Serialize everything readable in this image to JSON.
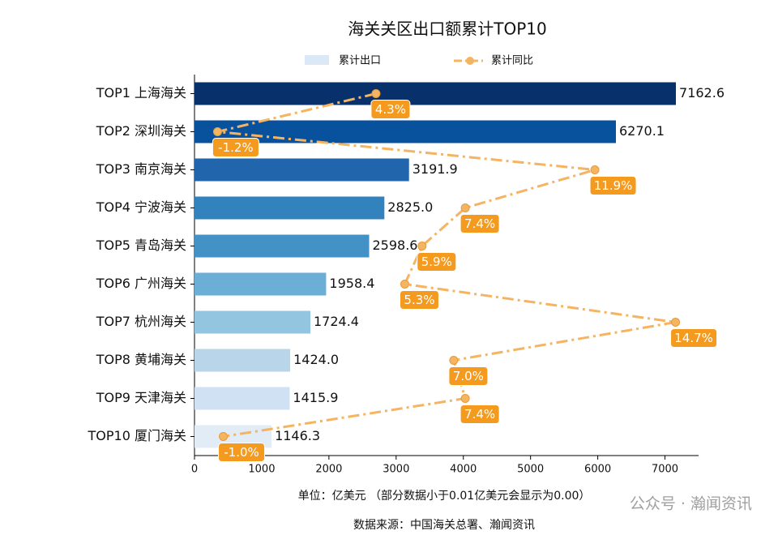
{
  "chart_data": {
    "type": "bar_line",
    "title": "海关关区出口额累计TOP10",
    "categories": [
      "TOP1 上海海关",
      "TOP2 深圳海关",
      "TOP3 南京海关",
      "TOP4 宁波海关",
      "TOP5 青岛海关",
      "TOP6 广州海关",
      "TOP7 杭州海关",
      "TOP8 黄埔海关",
      "TOP9 天津海关",
      "TOP10 厦门海关"
    ],
    "series": [
      {
        "name": "累计出口",
        "type": "bar",
        "values": [
          7162.6,
          6270.1,
          3191.9,
          2825.0,
          2598.6,
          1958.4,
          1724.4,
          1424.0,
          1415.9,
          1146.3
        ],
        "value_labels": [
          "7162.6",
          "6270.1",
          "3191.9",
          "2825.0",
          "2598.6",
          "1958.4",
          "1724.4",
          "1424.0",
          "1415.9",
          "1146.3"
        ],
        "colors": [
          "#08306b",
          "#08519c",
          "#2166ac",
          "#3182bd",
          "#4292c6",
          "#6baed6",
          "#93c4e0",
          "#b8d5ea",
          "#cfe1f2",
          "#e1ecf7"
        ],
        "legend_color": "#dbe9f6"
      },
      {
        "name": "累计同比",
        "type": "line",
        "axis": "x2",
        "values": [
          4.3,
          -1.2,
          11.9,
          7.4,
          5.9,
          5.3,
          14.7,
          7.0,
          7.4,
          -1.0
        ],
        "value_labels": [
          "4.3%",
          "-1.2%",
          "11.9%",
          "7.4%",
          "5.9%",
          "5.3%",
          "14.7%",
          "7.0%",
          "7.4%",
          "-1.0%"
        ],
        "color": "#f5b461",
        "label_color": "#f39a1f"
      }
    ],
    "xlim": [
      0,
      7500
    ],
    "xticks": [
      0,
      1000,
      2000,
      3000,
      4000,
      5000,
      6000,
      7000
    ],
    "x2lim": [
      -2,
      15.5
    ],
    "xlabel": "单位：亿美元  （部分数据小于0.01亿美元会显示为0.00）",
    "source": "数据来源：中国海关总署、瀚闻资讯",
    "watermark": "公众号 · 瀚闻资讯"
  }
}
